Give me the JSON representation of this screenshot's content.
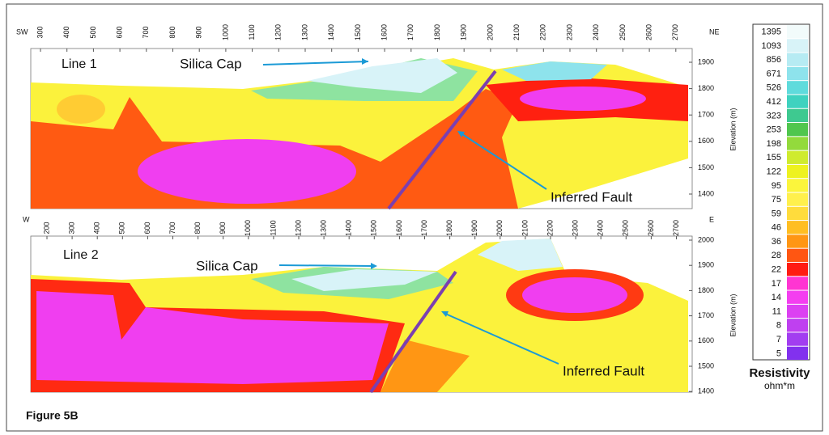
{
  "figure_label": "Figure 5B",
  "panels": [
    {
      "label": "Line 1",
      "left_direction": "SW",
      "right_direction": "NE",
      "xticks": [
        300,
        400,
        500,
        600,
        700,
        800,
        900,
        1000,
        1100,
        1200,
        1300,
        1400,
        1500,
        1600,
        1700,
        1800,
        1900,
        2000,
        2100,
        2200,
        2300,
        2400,
        2500,
        2600,
        2700
      ],
      "yticks": [
        1900,
        1800,
        1700,
        1600,
        1500,
        1400
      ],
      "y_label": "Elevation (m)",
      "annotations": [
        "Silica Cap",
        "Inferred Fault"
      ]
    },
    {
      "label": "Line 2",
      "left_direction": "W",
      "right_direction": "E",
      "xticks": [
        200,
        300,
        400,
        500,
        600,
        700,
        800,
        900,
        1000,
        1100,
        1200,
        1300,
        1400,
        1500,
        1600,
        1700,
        1800,
        1900,
        2000,
        2100,
        2200,
        2300,
        2400,
        2500,
        2600,
        2700
      ],
      "yticks": [
        2000,
        1900,
        1800,
        1700,
        1600,
        1500,
        1400
      ],
      "y_label": "Elevation (m)",
      "annotations": [
        "Silica Cap",
        "Inferred Fault"
      ]
    }
  ],
  "colorbar": {
    "title": "Resistivity",
    "unit": "ohm*m",
    "labels": [
      1395,
      1093,
      856,
      671,
      526,
      412,
      323,
      253,
      198,
      155,
      122,
      95,
      75,
      59,
      46,
      36,
      28,
      22,
      17,
      14,
      11,
      8,
      7,
      5
    ],
    "colors": [
      "#f2fbfb",
      "#d8f3f8",
      "#b6ebf3",
      "#8ee3ec",
      "#5fdbdc",
      "#3fd2bf",
      "#3ec990",
      "#50c64e",
      "#93da3c",
      "#cfeb2e",
      "#eef21f",
      "#fbf53c",
      "#fff04d",
      "#ffdc3c",
      "#ffbe22",
      "#ff9614",
      "#ff5612",
      "#ff1c12",
      "#ff35d2",
      "#f43ef0",
      "#dc40f2",
      "#bf40f0",
      "#a23ef0",
      "#8231ee"
    ]
  }
}
